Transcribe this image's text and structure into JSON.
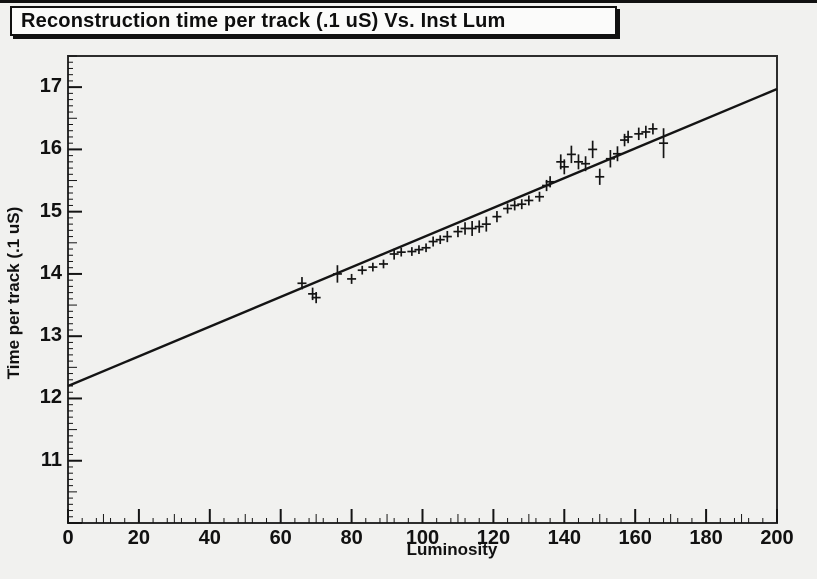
{
  "colors": {
    "background": "#f1f1ef",
    "ink": "#141414",
    "frame": "#2d2d2d",
    "title_box_bg": "#fbfbfa",
    "title_box_border": "#111111"
  },
  "chart_data": {
    "type": "scatter",
    "title": "Reconstruction time per track (.1 uS) Vs. Inst Lum",
    "xlabel": "Luminosity",
    "ylabel": "Time per track (.1 uS)",
    "xlim": [
      0,
      200
    ],
    "ylim": [
      10,
      17.5
    ],
    "x_ticks": [
      0,
      20,
      40,
      60,
      80,
      100,
      120,
      140,
      160,
      180,
      200
    ],
    "y_ticks": [
      11,
      12,
      13,
      14,
      15,
      16,
      17
    ],
    "x_minor_step": 4,
    "x_medium_step": 10,
    "y_minor_step": 0.1,
    "y_medium_step": 0.5,
    "grid": false,
    "legend": false,
    "fit_line": {
      "x": [
        0,
        200
      ],
      "y": [
        12.2,
        16.97
      ]
    },
    "series": [
      {
        "name": "reconstruction-time-per-track",
        "marker": "plus-with-error-bars",
        "points": [
          [
            66,
            13.85,
            0.1
          ],
          [
            69,
            13.68,
            0.1
          ],
          [
            70,
            13.62,
            0.09
          ],
          [
            76,
            14.0,
            0.14
          ],
          [
            80,
            13.92,
            0.08
          ],
          [
            83,
            14.06,
            0.07
          ],
          [
            86,
            14.11,
            0.07
          ],
          [
            89,
            14.16,
            0.07
          ],
          [
            92,
            14.32,
            0.09
          ],
          [
            94,
            14.35,
            0.07
          ],
          [
            97,
            14.36,
            0.07
          ],
          [
            99,
            14.39,
            0.07
          ],
          [
            101,
            14.42,
            0.07
          ],
          [
            103,
            14.52,
            0.08
          ],
          [
            105,
            14.55,
            0.07
          ],
          [
            107,
            14.6,
            0.09
          ],
          [
            110,
            14.68,
            0.09
          ],
          [
            112,
            14.73,
            0.1
          ],
          [
            114,
            14.73,
            0.12
          ],
          [
            116,
            14.76,
            0.1
          ],
          [
            118,
            14.8,
            0.12
          ],
          [
            121,
            14.92,
            0.09
          ],
          [
            124,
            15.05,
            0.08
          ],
          [
            126,
            15.1,
            0.08
          ],
          [
            128,
            15.12,
            0.08
          ],
          [
            130,
            15.18,
            0.08
          ],
          [
            133,
            15.24,
            0.08
          ],
          [
            135,
            15.42,
            0.09
          ],
          [
            136,
            15.48,
            0.09
          ],
          [
            139,
            15.8,
            0.12
          ],
          [
            140,
            15.72,
            0.12
          ],
          [
            142,
            15.92,
            0.14
          ],
          [
            144,
            15.8,
            0.12
          ],
          [
            146,
            15.77,
            0.12
          ],
          [
            148,
            16.0,
            0.14
          ],
          [
            150,
            15.56,
            0.13
          ],
          [
            153,
            15.85,
            0.14
          ],
          [
            155,
            15.93,
            0.12
          ],
          [
            157,
            16.15,
            0.1
          ],
          [
            158,
            16.2,
            0.1
          ],
          [
            161,
            16.25,
            0.1
          ],
          [
            163,
            16.28,
            0.1
          ],
          [
            165,
            16.33,
            0.09
          ],
          [
            168,
            16.1,
            0.24
          ]
        ]
      }
    ]
  }
}
